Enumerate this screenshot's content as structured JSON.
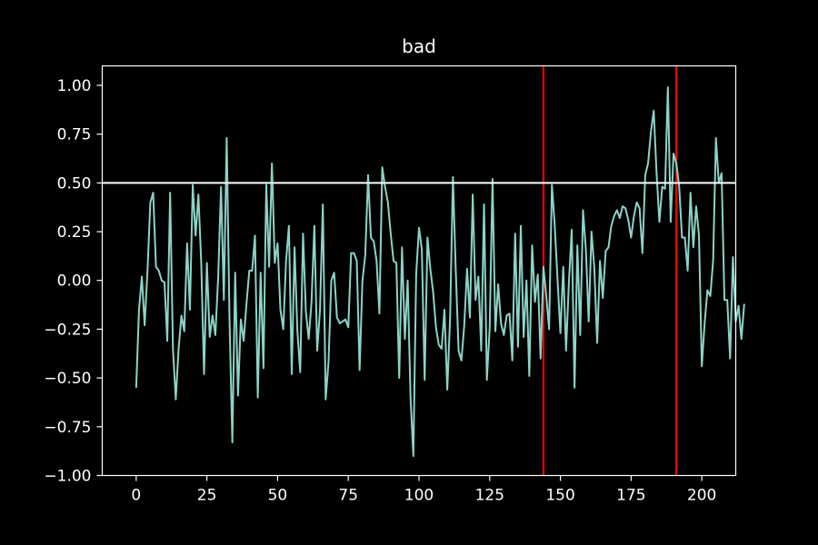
{
  "chart_data": {
    "type": "line",
    "title": "bad",
    "xlabel": "",
    "ylabel": "",
    "xlim": [
      -12,
      212
    ],
    "ylim": [
      -1.0,
      1.1
    ],
    "grid": false,
    "legend": "none",
    "x_ticks": [
      0,
      25,
      50,
      75,
      100,
      125,
      150,
      175,
      200
    ],
    "x_tick_labels": [
      "0",
      "25",
      "50",
      "75",
      "100",
      "125",
      "150",
      "175",
      "200"
    ],
    "y_ticks": [
      -1.0,
      -0.75,
      -0.5,
      -0.25,
      0.0,
      0.25,
      0.5,
      0.75,
      1.0
    ],
    "y_tick_labels": [
      "−1.00",
      "−0.75",
      "−0.50",
      "−0.25",
      "0.00",
      "0.25",
      "0.50",
      "0.75",
      "1.00"
    ],
    "colors": {
      "background": "#000000",
      "series": "#8dd3c7",
      "hline": "#ffffff",
      "vline": "#ff0000",
      "axes": "#ffffff"
    },
    "hlines": [
      0.5
    ],
    "vlines": [
      144,
      191
    ],
    "series": [
      {
        "values": [
          -0.55,
          -0.15,
          0.02,
          -0.23,
          0.05,
          0.4,
          0.45,
          0.07,
          0.05,
          0.0,
          -0.01,
          -0.31,
          0.45,
          -0.35,
          -0.61,
          -0.35,
          -0.18,
          -0.26,
          0.19,
          -0.15,
          0.49,
          0.23,
          0.44,
          0.09,
          -0.48,
          0.09,
          -0.29,
          -0.18,
          -0.28,
          0.02,
          0.48,
          -0.1,
          0.73,
          -0.2,
          -0.83,
          0.04,
          -0.59,
          -0.2,
          -0.31,
          -0.12,
          0.05,
          0.05,
          0.23,
          -0.6,
          0.04,
          -0.45,
          0.49,
          0.07,
          0.6,
          0.09,
          0.19,
          -0.15,
          -0.25,
          0.1,
          0.28,
          -0.48,
          0.17,
          -0.26,
          -0.47,
          0.24,
          -0.16,
          -0.3,
          -0.11,
          0.28,
          -0.36,
          -0.15,
          0.39,
          -0.61,
          -0.42,
          0.0,
          0.04,
          -0.19,
          -0.22,
          -0.21,
          -0.2,
          -0.24,
          0.14,
          0.14,
          0.1,
          -0.46,
          0.0,
          0.13,
          0.54,
          0.22,
          0.2,
          0.1,
          -0.17,
          0.58,
          0.48,
          0.4,
          0.24,
          0.1,
          0.09,
          -0.5,
          0.17,
          -0.3,
          0.0,
          -0.6,
          -0.9,
          0.03,
          0.27,
          0.16,
          -0.51,
          0.22,
          0.06,
          -0.06,
          -0.24,
          -0.33,
          -0.35,
          -0.15,
          -0.56,
          -0.19,
          0.53,
          0.05,
          -0.36,
          -0.41,
          -0.23,
          0.06,
          -0.19,
          0.44,
          -0.1,
          0.02,
          -0.36,
          0.39,
          -0.51,
          -0.24,
          0.52,
          -0.26,
          -0.02,
          -0.22,
          -0.28,
          -0.18,
          -0.17,
          -0.41,
          0.24,
          -0.34,
          0.28,
          -0.29,
          0.0,
          -0.49,
          0.18,
          -0.11,
          0.03,
          -0.4,
          0.07,
          -0.08,
          -0.25,
          0.49,
          0.28,
          0.0,
          -0.27,
          0.07,
          -0.36,
          -0.01,
          0.26,
          -0.55,
          0.18,
          -0.28,
          0.36,
          0.16,
          -0.21,
          0.25,
          0.06,
          -0.32,
          0.1,
          -0.09,
          0.15,
          0.17,
          0.28,
          0.33,
          0.36,
          0.32,
          0.38,
          0.37,
          0.31,
          0.22,
          0.33,
          0.4,
          0.37,
          0.14,
          0.54,
          0.6,
          0.76,
          0.87,
          0.55,
          0.3,
          0.48,
          0.47,
          0.99,
          0.3,
          0.65,
          0.6,
          0.48,
          0.22,
          0.22,
          0.05,
          0.45,
          0.17,
          0.38,
          0.23,
          -0.44,
          -0.22,
          -0.05,
          -0.08,
          0.1,
          0.73,
          0.5,
          0.55,
          -0.1,
          -0.1,
          -0.4,
          0.12,
          -0.21,
          -0.13,
          -0.3,
          -0.12
        ]
      }
    ]
  }
}
